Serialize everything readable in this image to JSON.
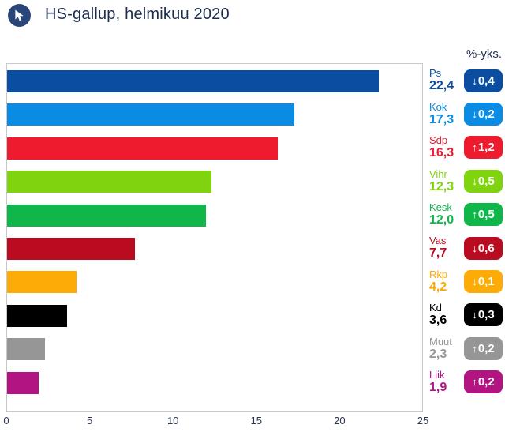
{
  "header": {
    "title": "HS-gallup, helmikuu 2020",
    "logo_icon": "cursor-arrow-icon",
    "logo_color": "#2a4679"
  },
  "legend_header": "%-yks.",
  "parties": [
    {
      "abbr": "Ps",
      "value": "22,4",
      "value_num": 22.4,
      "arrow": "↓",
      "change": "0,4",
      "direction": "down",
      "color": "#0b4da1"
    },
    {
      "abbr": "Kok",
      "value": "17,3",
      "value_num": 17.3,
      "arrow": "↓",
      "change": "0,2",
      "direction": "down",
      "color": "#0a8be4"
    },
    {
      "abbr": "Sdp",
      "value": "16,3",
      "value_num": 16.3,
      "arrow": "↑",
      "change": "1,2",
      "direction": "up",
      "color": "#ee1b2e"
    },
    {
      "abbr": "Vihr",
      "value": "12,3",
      "value_num": 12.3,
      "arrow": "↓",
      "change": "0,5",
      "direction": "down",
      "color": "#7fd30f"
    },
    {
      "abbr": "Kesk",
      "value": "12,0",
      "value_num": 12.0,
      "arrow": "↑",
      "change": "0,5",
      "direction": "up",
      "color": "#0fb64a"
    },
    {
      "abbr": "Vas",
      "value": "7,7",
      "value_num": 7.7,
      "arrow": "↓",
      "change": "0,6",
      "direction": "down",
      "color": "#b90c20"
    },
    {
      "abbr": "Rkp",
      "value": "4,2",
      "value_num": 4.2,
      "arrow": "↓",
      "change": "0,1",
      "direction": "down",
      "color": "#fcab07"
    },
    {
      "abbr": "Kd",
      "value": "3,6",
      "value_num": 3.6,
      "arrow": "↓",
      "change": "0,3",
      "direction": "down",
      "color": "#000000"
    },
    {
      "abbr": "Muut",
      "value": "2,3",
      "value_num": 2.3,
      "arrow": "↑",
      "change": "0,2",
      "direction": "up",
      "color": "#969696"
    },
    {
      "abbr": "Liik",
      "value": "1,9",
      "value_num": 1.9,
      "arrow": "↑",
      "change": "0,2",
      "direction": "up",
      "color": "#b21582"
    }
  ],
  "chart_data": {
    "type": "bar",
    "orientation": "horizontal",
    "title": "HS-gallup, helmikuu 2020",
    "categories": [
      "Ps",
      "Kok",
      "Sdp",
      "Vihr",
      "Kesk",
      "Vas",
      "Rkp",
      "Kd",
      "Muut",
      "Liik"
    ],
    "values": [
      22.4,
      17.3,
      16.3,
      12.3,
      12.0,
      7.7,
      4.2,
      3.6,
      2.3,
      1.9
    ],
    "changes": [
      -0.4,
      -0.2,
      1.2,
      -0.5,
      0.5,
      -0.6,
      -0.1,
      -0.3,
      0.2,
      0.2
    ],
    "change_unit": "%-yks.",
    "bar_colors": [
      "#0b4da1",
      "#0a8be4",
      "#ee1b2e",
      "#7fd30f",
      "#0fb64a",
      "#b90c20",
      "#fcab07",
      "#000000",
      "#969696",
      "#b21582"
    ],
    "xlabel": "",
    "ylabel": "",
    "xlim": [
      0,
      25
    ],
    "x_ticks": [
      0,
      5,
      10,
      15,
      20,
      25
    ],
    "grid": false,
    "legend_position": "right"
  }
}
